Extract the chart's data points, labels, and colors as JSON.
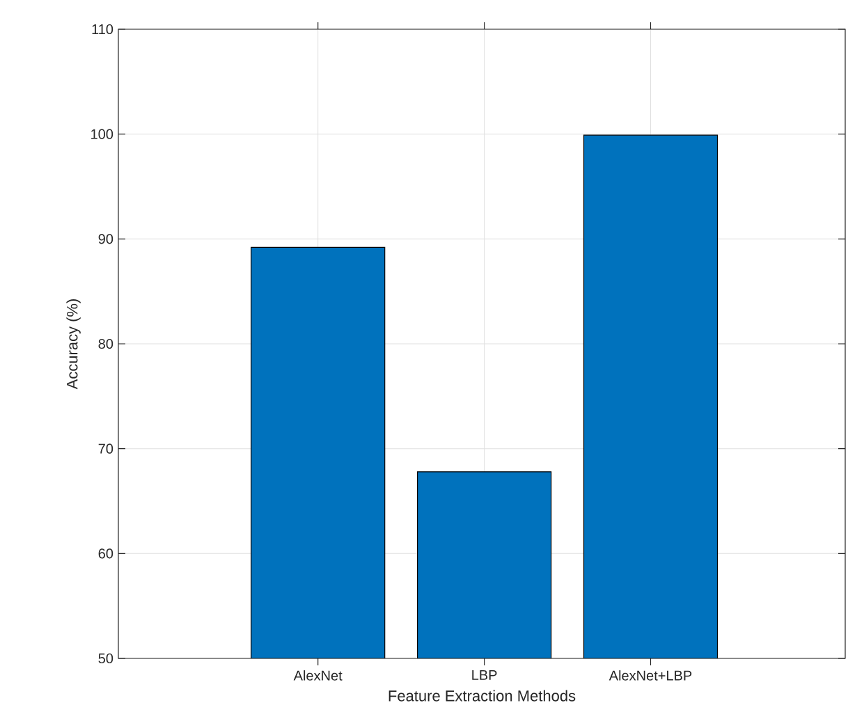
{
  "chart_data": {
    "type": "bar",
    "xlabel": "Feature Extraction Methods",
    "ylabel": "Accuracy (%)",
    "categories": [
      "AlexNet",
      "LBP",
      "AlexNet+LBP"
    ],
    "values": [
      89.2,
      67.8,
      99.9
    ],
    "color": "#0072bd",
    "ylim": [
      50,
      110
    ],
    "yticks": [
      50,
      60,
      70,
      80,
      90,
      100,
      110
    ],
    "grid": true
  }
}
